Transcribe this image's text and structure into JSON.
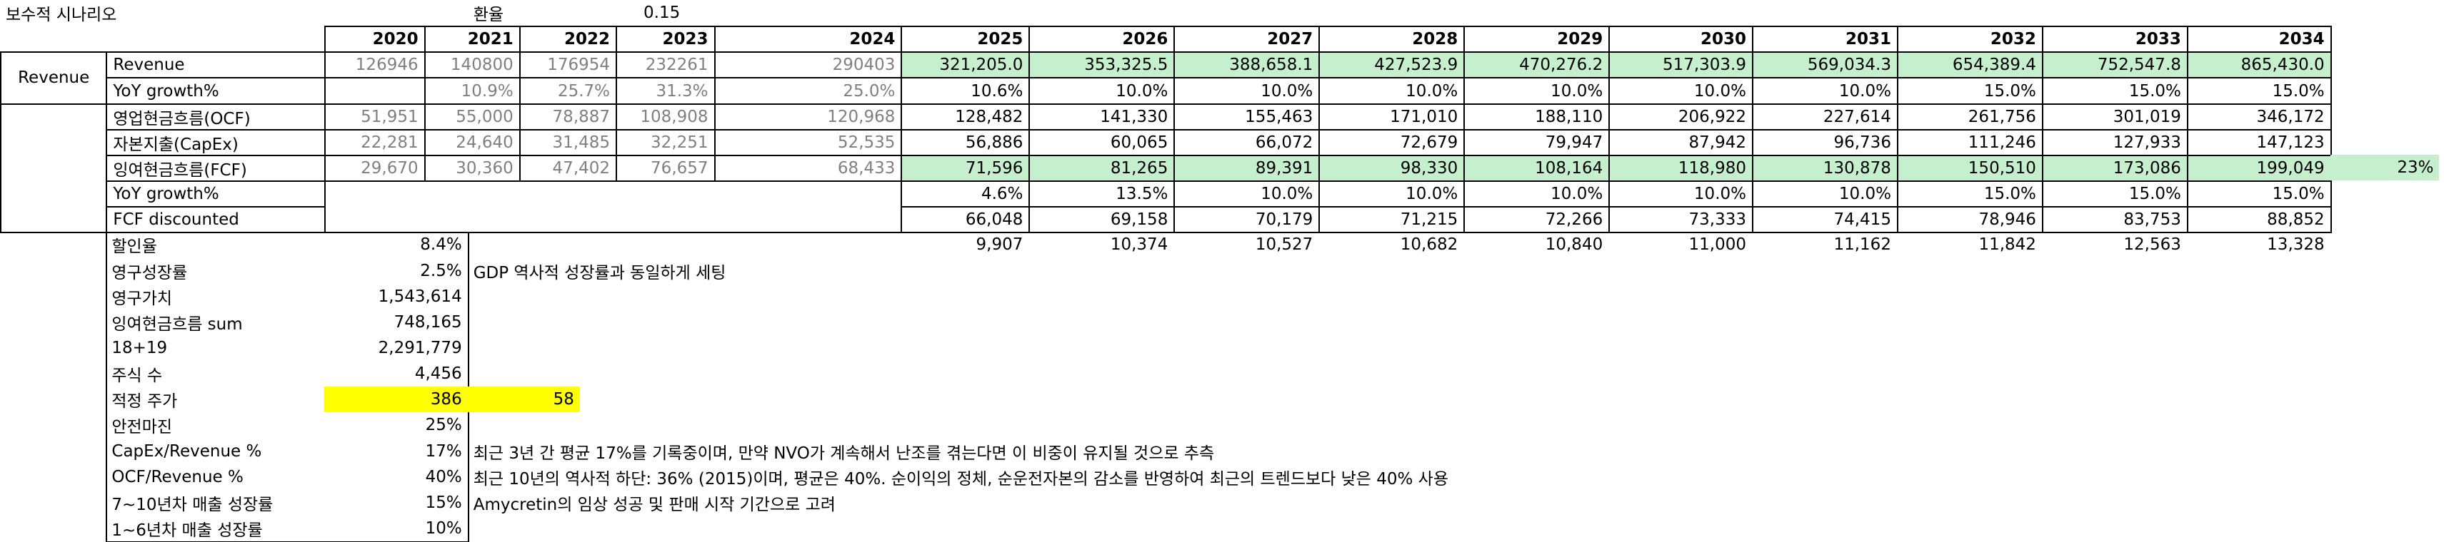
{
  "title": "보수적 시나리오",
  "fx_label": "환율",
  "fx_value": "0.15",
  "table": {
    "years": [
      2020,
      2021,
      2022,
      2023,
      2024,
      2025,
      2026,
      2027,
      2028,
      2029,
      2030,
      2031,
      2032,
      2033,
      2034
    ],
    "segment_label": "Revenue",
    "rows": [
      {
        "label": "Revenue",
        "values": [
          "126946",
          "140800",
          "176954",
          "232261",
          "290403",
          "321,205.0",
          "353,325.5",
          "388,658.1",
          "427,523.9",
          "470,276.2",
          "517,303.9",
          "569,034.3",
          "654,389.4",
          "752,547.8",
          "865,430.0"
        ]
      },
      {
        "label": "YoY growth%",
        "values": [
          null,
          "10.9%",
          "25.7%",
          "31.3%",
          "25.0%",
          "10.6%",
          "10.0%",
          "10.0%",
          "10.0%",
          "10.0%",
          "10.0%",
          "10.0%",
          "15.0%",
          "15.0%",
          "15.0%"
        ]
      },
      {
        "label": "영업현금흐름(OCF)",
        "values": [
          "51,951",
          "55,000",
          "78,887",
          "108,908",
          "120,968",
          "128,482",
          "141,330",
          "155,463",
          "171,010",
          "188,110",
          "206,922",
          "227,614",
          "261,756",
          "301,019",
          "346,172"
        ]
      },
      {
        "label": "자본지출(CapEx)",
        "values": [
          "22,281",
          "24,640",
          "31,485",
          "32,251",
          "52,535",
          "56,886",
          "60,065",
          "66,072",
          "72,679",
          "79,947",
          "87,942",
          "96,736",
          "111,246",
          "127,933",
          "147,123"
        ]
      },
      {
        "label": "잉여현금흐름(FCF)",
        "values": [
          "29,670",
          "30,360",
          "47,402",
          "76,657",
          "68,433",
          "71,596",
          "81,265",
          "89,391",
          "98,330",
          "108,164",
          "118,980",
          "130,878",
          "150,510",
          "173,086",
          "199,049"
        ],
        "extra": "23%"
      },
      {
        "label": "YoY growth%",
        "values": [
          null,
          null,
          null,
          null,
          null,
          "4.6%",
          "13.5%",
          "10.0%",
          "10.0%",
          "10.0%",
          "10.0%",
          "10.0%",
          "15.0%",
          "15.0%",
          "15.0%"
        ]
      },
      {
        "label": "FCF discounted",
        "values": [
          null,
          null,
          null,
          null,
          null,
          "66,048",
          "69,158",
          "70,179",
          "71,215",
          "72,266",
          "73,333",
          "74,415",
          "78,946",
          "83,753",
          "88,852"
        ]
      }
    ],
    "extra_row": [
      "9,907",
      "10,374",
      "10,527",
      "10,682",
      "10,840",
      "11,000",
      "11,162",
      "11,842",
      "12,563",
      "13,328"
    ]
  },
  "assumptions": [
    {
      "label": "할인율",
      "value": "8.4%"
    },
    {
      "label": "영구성장률",
      "value": "2.5%",
      "note": "GDP 역사적 성장률과 동일하게 세팅"
    },
    {
      "label": "영구가치",
      "value": "1,543,614"
    },
    {
      "label": "잉여현금흐름 sum",
      "value": "748,165"
    },
    {
      "label": "18+19",
      "value": "2,291,779"
    },
    {
      "label": "주식 수",
      "value": "4,456"
    },
    {
      "label": "적정 주가",
      "value": "386",
      "converted": "58"
    },
    {
      "label": "안전마진",
      "value": "25%"
    },
    {
      "label": "CapEx/Revenue %",
      "value": "17%",
      "note": "최근 3년 간 평균 17%를 기록중이며, 만약 NVO가 계속해서 난조를 겪는다면 이 비중이 유지될 것으로 추측"
    },
    {
      "label": "OCF/Revenue %",
      "value": "40%",
      "note": "최근 10년의 역사적 하단: 36% (2015)이며, 평균은 40%. 순이익의 정체, 순운전자본의 감소를 반영하여 최근의 트렌드보다 낮은 40% 사용"
    },
    {
      "label": "7~10년차 매출 성장률",
      "value": "15%",
      "note": "Amycretin의 임상 성공 및 판매 시작 기간으로 고려"
    },
    {
      "label": "1~6년차 매출 성장률",
      "value": "10%"
    }
  ]
}
